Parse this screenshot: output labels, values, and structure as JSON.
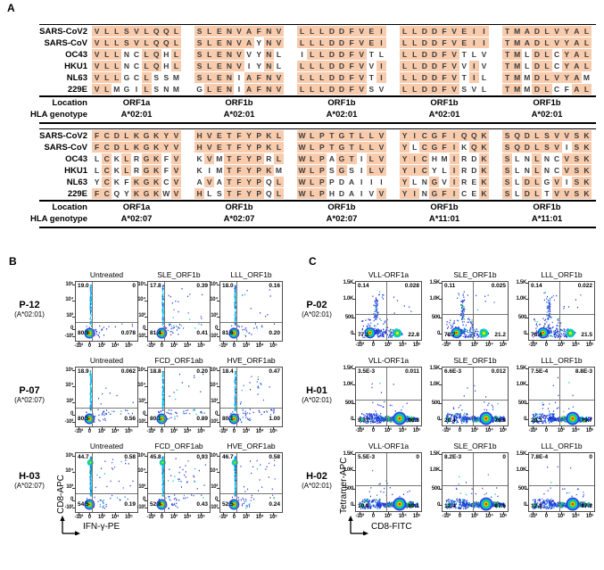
{
  "panelA": {
    "label": "A",
    "location_label": "Location",
    "hla_label": "HLA genotype",
    "highlight_color": "#f8cbad",
    "blocks": [
      {
        "rows": [
          {
            "name": "SARS-CoV2",
            "peptides": [
              "VLLSVLQQL",
              "SLENVAFNV",
              "LLLDDFVEI",
              "LLDDFVEII",
              "TMADLVYAL"
            ]
          },
          {
            "name": "SARS-CoV",
            "peptides": [
              "VLLSVLQQL",
              "SLENVAYNV",
              "LLLDDFVEI",
              "LLDDFVEII",
              "TMADLVYAL"
            ]
          },
          {
            "name": "OC43",
            "peptides": [
              "VLLNCLQHL",
              "SLENVVYNL",
              "ILLDDFVTL",
              "LLDDFVTLV",
              "TMLDLCYAL"
            ]
          },
          {
            "name": "HKU1",
            "peptides": [
              "VLLNCLQHL",
              "SLENVIYNL",
              "LLLDDFVVI",
              "LLDDFVVIV",
              "TMLDLCYAL"
            ]
          },
          {
            "name": "NL63",
            "peptides": [
              "VLLGCLSSM",
              "SLENIAFNV",
              "LLLDDFVTI",
              "LLDDFVTIL",
              "TMMDLVYAM"
            ]
          },
          {
            "name": "229E",
            "peptides": [
              "VLMGILSNM",
              "GLENIAFNV",
              "LLLDDFVSV",
              "LLDDFVSVL",
              "TMMDLCFAL"
            ]
          }
        ],
        "locations": [
          "ORF1a",
          "ORF1b",
          "ORF1b",
          "ORF1b",
          "ORF1b"
        ],
        "hla": [
          "A*02:01",
          "A*02:01",
          "A*02:01",
          "A*02:01",
          "A*02:01"
        ]
      },
      {
        "rows": [
          {
            "name": "SARS-CoV2",
            "peptides": [
              "FCDLKGKYV",
              "HVETFYPKL",
              "WLPTGTLLV",
              "YICGFIQQK",
              "SQDLSVVSK"
            ]
          },
          {
            "name": "SARS-CoV",
            "peptides": [
              "FCDLKGKYV",
              "HVETFYPKL",
              "WLPTGTLLV",
              "YLCGFIKQK",
              "SQDLSVISK"
            ]
          },
          {
            "name": "OC43",
            "peptides": [
              "LCKLRGKFV",
              "KVMTFYPRL",
              "WLPAGTILV",
              "YICHMIRDK",
              "SLNLNCVSK"
            ]
          },
          {
            "name": "HKU1",
            "peptides": [
              "LCKLRGKFV",
              "KIMTFYPKM",
              "WLPSGSILV",
              "YICYLIRDK",
              "SLNLNCVSK"
            ]
          },
          {
            "name": "NL63",
            "peptides": [
              "YCKFKGKCV",
              "AVATFYPQL",
              "WLPPDAIII",
              "YLNGVIREK",
              "SLDLGVISK"
            ]
          },
          {
            "name": "229E",
            "peptides": [
              "FCQYKGKWV",
              "HLSTFYPQL",
              "WLPHDAIVV",
              "YINGFICEK",
              "SLDLTVVSK"
            ]
          }
        ],
        "locations": [
          "ORF1a",
          "ORF1b",
          "ORF1b",
          "ORF1b",
          "ORF1b"
        ],
        "hla": [
          "A*02:07",
          "A*02:07",
          "A*02:07",
          "A*11:01",
          "A*11:01"
        ]
      }
    ]
  },
  "panelB": {
    "label": "B",
    "x_axis": "IFN-γ-PE",
    "y_axis": "CD8-APC",
    "x_ticks": [
      "-10³",
      "0",
      "10³",
      "10⁴",
      "10⁵"
    ],
    "y_ticks": [
      "10⁵",
      "10⁴",
      "10³",
      "0",
      "-10³"
    ],
    "rows": [
      {
        "id": "P-12",
        "genotype": "(A*02:01)",
        "plots": [
          {
            "title": "Untreated",
            "distribution": "cd8_streak",
            "q": {
              "ul": "19.0",
              "ur": "0",
              "ll": "80.9",
              "lr": "0.078"
            }
          },
          {
            "title": "SLE_ORF1b",
            "distribution": "cd8_streak",
            "q": {
              "ul": "17.8",
              "ur": "0.39",
              "ll": "81.4",
              "lr": "0.41"
            }
          },
          {
            "title": "LLL_ORF1b",
            "distribution": "cd8_streak",
            "q": {
              "ul": "18.0",
              "ur": "0.16",
              "ll": "81.6",
              "lr": "0.20"
            }
          }
        ]
      },
      {
        "id": "P-07",
        "genotype": "(A*02:07)",
        "plots": [
          {
            "title": "Untreated",
            "distribution": "cd8_streak",
            "q": {
              "ul": "18.9",
              "ur": "0.062",
              "ll": "80.5",
              "lr": "0.56"
            }
          },
          {
            "title": "FCD_ORF1ab",
            "distribution": "cd8_streak",
            "q": {
              "ul": "18.8",
              "ur": "0.20",
              "ll": "80.1",
              "lr": "0.89"
            }
          },
          {
            "title": "HVE_ORF1ab",
            "distribution": "cd8_streak",
            "q": {
              "ul": "18.4",
              "ur": "0.47",
              "ll": "80.1",
              "lr": "1.00"
            }
          }
        ]
      },
      {
        "id": "H-03",
        "genotype": "(A*02:07)",
        "plots": [
          {
            "title": "Untreated",
            "distribution": "cd8_streak_high",
            "q": {
              "ul": "44.7",
              "ur": "0.58",
              "ll": "54.5",
              "lr": "0.19"
            }
          },
          {
            "title": "FCD_ORF1ab",
            "distribution": "cd8_streak_high",
            "q": {
              "ul": "45.8",
              "ur": "0.93",
              "ll": "52.8",
              "lr": "0.43"
            }
          },
          {
            "title": "HVE_ORF1ab",
            "distribution": "cd8_streak_high",
            "q": {
              "ul": "46.7",
              "ur": "0.58",
              "ll": "52.5",
              "lr": "0.24"
            }
          }
        ]
      }
    ]
  },
  "panelC": {
    "label": "C",
    "x_axis": "CD8-FITC",
    "y_axis": "Tetramer-APC",
    "x_ticks": [
      "-10³",
      "0",
      "10³",
      "10⁴",
      "10⁵"
    ],
    "y_ticks": [
      "1.5K",
      "1.0K",
      "500",
      "0"
    ],
    "rows": [
      {
        "id": "P-02",
        "genotype": "(A*02:01)",
        "plots": [
          {
            "title": "VLL-ORF1a",
            "distribution": "band_two_pop",
            "q": {
              "ul": "0.14",
              "ur": "0.028",
              "ll": "77.1",
              "lr": "22.8"
            }
          },
          {
            "title": "SLE_ORF1b",
            "distribution": "band_two_pop",
            "q": {
              "ul": "0.11",
              "ur": "0.025",
              "ll": "78.7",
              "lr": "21.2"
            }
          },
          {
            "title": "LLL_ORF1b",
            "distribution": "band_two_pop",
            "q": {
              "ul": "0.14",
              "ur": "0.022",
              "ll": "78.4",
              "lr": "21.5"
            }
          }
        ]
      },
      {
        "id": "H-01",
        "genotype": "(A*02:01)",
        "plots": [
          {
            "title": "VLL-ORF1a",
            "distribution": "band_right_hot",
            "q": {
              "ul": "3.5E-3",
              "ur": "0.011",
              "ll": "9.71",
              "lr": "90.3"
            }
          },
          {
            "title": "SLE_ORF1b",
            "distribution": "band_right_hot",
            "q": {
              "ul": "6.6E-3",
              "ur": "0.012",
              "ll": "20.4",
              "lr": "79.6"
            }
          },
          {
            "title": "LLL_ORF1b",
            "distribution": "band_right_hot",
            "q": {
              "ul": "7.5E-4",
              "ur": "8.8E-3",
              "ll": "20.3",
              "lr": "79.7"
            }
          }
        ]
      },
      {
        "id": "H-02",
        "genotype": "(A*02:01)",
        "plots": [
          {
            "title": "VLL-ORF1a",
            "distribution": "band_right_hot",
            "q": {
              "ul": "5.5E-3",
              "ur": "0",
              "ll": "10.9",
              "lr": "89.1"
            }
          },
          {
            "title": "SLE_ORF1b",
            "distribution": "band_right_hot",
            "q": {
              "ul": "8.2E-3",
              "ur": "0",
              "ll": "12.4",
              "lr": "87.6"
            }
          },
          {
            "title": "LLL_ORF1b",
            "distribution": "band_right_hot",
            "q": {
              "ul": "7.8E-4",
              "ur": "0",
              "ll": "12.8",
              "lr": "87.2"
            }
          }
        ]
      }
    ]
  }
}
